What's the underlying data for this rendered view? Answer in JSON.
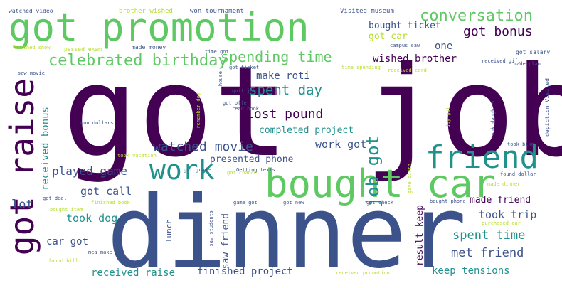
{
  "palette": {
    "dark_purple": "#440154",
    "indigo": "#3b528b",
    "teal": "#21918c",
    "green": "#5ec962",
    "light_green": "#b5de2b"
  },
  "words": [
    "got job",
    "dinner",
    "got promotion",
    "bought car",
    "friend",
    "work",
    "got raise",
    "job got",
    "conversation",
    "got bonus",
    "celebrated birthday",
    "spending time",
    "bought ticket",
    "got car",
    "one",
    "wished brother",
    "make roti",
    "spent day",
    "lost pound",
    "completed project",
    "watched movie",
    "work got",
    "presented phone",
    "received bonus",
    "played game",
    "got call",
    "lot",
    "took dog",
    "made friend",
    "took trip",
    "spent time",
    "met friend",
    "car got",
    "result keep",
    "saw friend",
    "received raise",
    "finished project",
    "keep tensions",
    "lunch",
    "brother wished",
    "won tournament",
    "Visited museum",
    "watched video",
    "watched show",
    "passed exam",
    "made money",
    "campus saw",
    "received gift",
    "got salary",
    "time got",
    "saw movie",
    "made plan",
    "got ticket",
    "time spending",
    "received card",
    "quit job",
    "read book",
    "got offer",
    "got chance",
    "remember day",
    "won dollars",
    "took vacation",
    "depiction Visited",
    "day got",
    "took bike",
    "took daughter",
    "gave birth",
    "found dollar",
    "made dinner",
    "got grade",
    "Getting texts",
    "got deal",
    "finished book",
    "bought item",
    "mea make",
    "found bill",
    "saw students",
    "game got",
    "got new",
    "got check",
    "bought phone",
    "purchased car",
    "received promotion",
    "house"
  ]
}
